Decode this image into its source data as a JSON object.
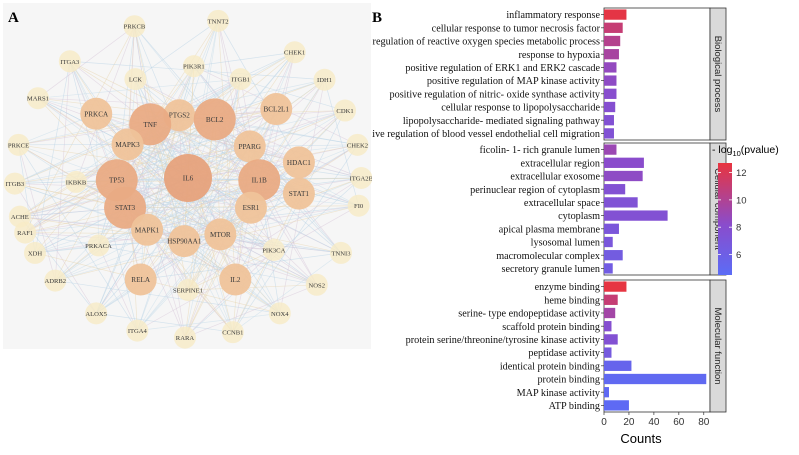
{
  "panel_a": {
    "label": "A",
    "nodes": [
      {
        "name": "TNNT2",
        "ring": 4,
        "angle": -80,
        "size": "s"
      },
      {
        "name": "PRKCB",
        "ring": 4,
        "angle": -108,
        "size": "s"
      },
      {
        "name": "CHEK1",
        "ring": 4,
        "angle": -52,
        "size": "s"
      },
      {
        "name": "ITGA3",
        "ring": 4,
        "angle": -133,
        "size": "s"
      },
      {
        "name": "IDH1",
        "ring": 4,
        "angle": -38,
        "size": "s"
      },
      {
        "name": "PIK3R1",
        "ring": 3,
        "angle": -87,
        "size": "s"
      },
      {
        "name": "MARS1",
        "ring": 4,
        "angle": -150,
        "size": "s"
      },
      {
        "name": "LCK",
        "ring": 3,
        "angle": -118,
        "size": "s"
      },
      {
        "name": "ITGB1",
        "ring": 3,
        "angle": -62,
        "size": "s"
      },
      {
        "name": "CDK1",
        "ring": 4,
        "angle": -25,
        "size": "s"
      },
      {
        "name": "PRKCE",
        "ring": 4,
        "angle": -168,
        "size": "s"
      },
      {
        "name": "PRKCA",
        "ring": 3,
        "angle": -145,
        "size": "m"
      },
      {
        "name": "PTGS2",
        "ring": 2,
        "angle": -97,
        "size": "m"
      },
      {
        "name": "BCL2",
        "ring": 2,
        "angle": -68,
        "size": "l"
      },
      {
        "name": "TNF",
        "ring": 2,
        "angle": -122,
        "size": "l"
      },
      {
        "name": "BCL2L1",
        "ring": 3,
        "angle": -38,
        "size": "m"
      },
      {
        "name": "CHEK2",
        "ring": 4,
        "angle": -12,
        "size": "s"
      },
      {
        "name": "PPARG",
        "ring": 2,
        "angle": -30,
        "size": "m"
      },
      {
        "name": "MAPK3",
        "ring": 2,
        "angle": -148,
        "size": "m"
      },
      {
        "name": "ITGB3",
        "ring": 4,
        "angle": 178,
        "size": "s"
      },
      {
        "name": "IKBKB",
        "ring": 3,
        "angle": 178,
        "size": "s"
      },
      {
        "name": "HDAC1",
        "ring": 3,
        "angle": -8,
        "size": "m"
      },
      {
        "name": "ITGA2B",
        "ring": 4,
        "angle": 0,
        "size": "s"
      },
      {
        "name": "TP53",
        "ring": 2,
        "angle": 178,
        "size": "l"
      },
      {
        "name": "IL6",
        "ring": 1,
        "angle": 0,
        "size": "xl"
      },
      {
        "name": "IL1B",
        "ring": 2,
        "angle": 2,
        "size": "l"
      },
      {
        "name": "ACHE",
        "ring": 4,
        "angle": 166,
        "size": "s"
      },
      {
        "name": "RAF1",
        "ring": 4,
        "angle": 160,
        "size": "s"
      },
      {
        "name": "STAT3",
        "ring": 2,
        "angle": 152,
        "size": "l"
      },
      {
        "name": "ESR1",
        "ring": 2,
        "angle": 28,
        "size": "m"
      },
      {
        "name": "STAT1",
        "ring": 3,
        "angle": 8,
        "size": "m"
      },
      {
        "name": "FI0",
        "ring": 4,
        "angle": 10,
        "size": "s"
      },
      {
        "name": "XDH",
        "ring": 4,
        "angle": 152,
        "size": "s"
      },
      {
        "name": "MAPK1",
        "ring": 2,
        "angle": 125,
        "size": "m"
      },
      {
        "name": "MTOR",
        "ring": 2,
        "angle": 63,
        "size": "m"
      },
      {
        "name": "HSP90AA1",
        "ring": 2,
        "angle": 93,
        "size": "m"
      },
      {
        "name": "PIK3CA",
        "ring": 3,
        "angle": 40,
        "size": "s"
      },
      {
        "name": "TNNI3",
        "ring": 4,
        "angle": 28,
        "size": "s"
      },
      {
        "name": "PRKACA",
        "ring": 3,
        "angle": 143,
        "size": "s"
      },
      {
        "name": "ADRB2",
        "ring": 4,
        "angle": 140,
        "size": "s"
      },
      {
        "name": "RELA",
        "ring": 3,
        "angle": 115,
        "size": "m"
      },
      {
        "name": "SERPINE1",
        "ring": 3,
        "angle": 90,
        "size": "s"
      },
      {
        "name": "IL2",
        "ring": 3,
        "angle": 65,
        "size": "m"
      },
      {
        "name": "NOS2",
        "ring": 4,
        "angle": 42,
        "size": "s"
      },
      {
        "name": "ALOX5",
        "ring": 4,
        "angle": 122,
        "size": "s"
      },
      {
        "name": "NOX4",
        "ring": 4,
        "angle": 58,
        "size": "s"
      },
      {
        "name": "ITGA4",
        "ring": 4,
        "angle": 107,
        "size": "s"
      },
      {
        "name": "CCNB1",
        "ring": 4,
        "angle": 75,
        "size": "s"
      },
      {
        "name": "RARA",
        "ring": 4,
        "angle": 91,
        "size": "s"
      }
    ]
  },
  "chart_data": {
    "type": "bar",
    "panel_label": "B",
    "orientation": "horizontal",
    "xlabel": "Counts",
    "xlim": [
      0,
      85
    ],
    "xticks": [
      0,
      20,
      40,
      60,
      80
    ],
    "color_scale": {
      "title": "- log10(pvalue)",
      "title_main": "- log",
      "title_sub": "10",
      "title_rest": "(pvalue)",
      "range": [
        4.5,
        12.7
      ],
      "ticks": [
        6,
        8,
        10,
        12
      ],
      "low_color": "#5b6cf6",
      "high_color": "#e8343f"
    },
    "facets": [
      {
        "name": "Biological process",
        "categories": [
          "inflammatory response",
          "cellular response to tumor necrosis factor",
          "positive regulation of reactive oxygen species metabolic process",
          "response to hypoxia",
          "positive regulation of ERK1 and ERK2 cascade",
          "positive regulation of MAP kinase activity",
          "positive regulation of nitric- oxide synthase activity",
          "cellular response to lipopolysaccharide",
          "lipopolysaccharide- mediated signaling pathway",
          "positive regulation of blood vessel endothelial cell migration"
        ],
        "values": [
          18,
          15,
          13,
          12,
          10,
          10,
          10,
          9,
          8,
          8
        ],
        "pvalue": [
          12.5,
          11.0,
          10.2,
          9.6,
          8.6,
          8.4,
          8.0,
          7.8,
          7.6,
          7.5
        ]
      },
      {
        "name": "Cellular component",
        "categories": [
          "ficolin- 1- rich granule lumen",
          "extracellular region",
          "extracellular exosome",
          "perinuclear region of cytoplasm",
          "extracellular space",
          "cytoplasm",
          "apical plasma membrane",
          "lysosomal lumen",
          "macromolecular complex",
          "secretory granule lumen"
        ],
        "values": [
          10,
          32,
          31,
          17,
          27,
          51,
          12,
          7,
          15,
          7
        ],
        "pvalue": [
          9.0,
          8.2,
          8.4,
          7.6,
          7.4,
          7.6,
          7.0,
          6.9,
          6.4,
          6.3
        ]
      },
      {
        "name": "Molecular function",
        "categories": [
          "enzyme binding",
          "heme binding",
          "serine- type endopeptidase activity",
          "scaffold protein binding",
          "protein serine/threonine/tyrosine kinase activity",
          "peptidase activity",
          "identical protein binding",
          "protein binding",
          "MAP kinase activity",
          "ATP binding"
        ],
        "values": [
          18,
          11,
          9,
          6,
          11,
          6,
          22,
          82,
          4,
          20
        ],
        "pvalue": [
          12.6,
          11.0,
          9.4,
          7.8,
          7.6,
          6.6,
          5.4,
          4.9,
          4.8,
          4.7
        ]
      }
    ]
  }
}
